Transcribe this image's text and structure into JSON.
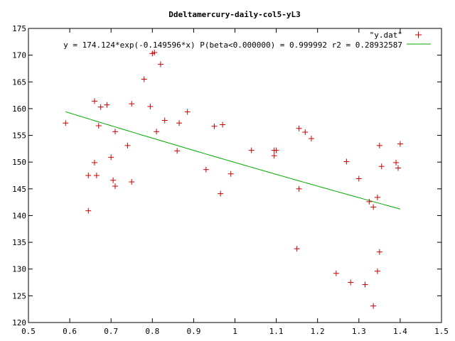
{
  "chart_data": {
    "type": "scatter",
    "title": "Ddeltamercury-daily-col5-yL3",
    "xlabel": "",
    "ylabel": "",
    "xlim": [
      0.5,
      1.5
    ],
    "ylim": [
      120,
      175
    ],
    "x_ticks": [
      "0.5",
      "0.6",
      "0.7",
      "0.8",
      "0.9",
      "1",
      "1.1",
      "1.2",
      "1.3",
      "1.4",
      "1.5"
    ],
    "y_ticks": [
      "120",
      "125",
      "130",
      "135",
      "140",
      "145",
      "150",
      "155",
      "160",
      "165",
      "170",
      "175"
    ],
    "grid": false,
    "legend_position": "top-right",
    "series": [
      {
        "name": "\"y.dat\"",
        "kind": "points",
        "marker": "+",
        "color": "#cc0000",
        "points": [
          [
            0.59,
            157.3
          ],
          [
            0.645,
            140.9
          ],
          [
            0.645,
            147.5
          ],
          [
            0.66,
            149.9
          ],
          [
            0.66,
            161.4
          ],
          [
            0.665,
            147.5
          ],
          [
            0.67,
            156.8
          ],
          [
            0.675,
            160.3
          ],
          [
            0.69,
            160.7
          ],
          [
            0.7,
            150.9
          ],
          [
            0.705,
            146.6
          ],
          [
            0.71,
            155.7
          ],
          [
            0.71,
            145.5
          ],
          [
            0.74,
            153.1
          ],
          [
            0.75,
            160.9
          ],
          [
            0.75,
            146.3
          ],
          [
            0.78,
            165.5
          ],
          [
            0.795,
            160.4
          ],
          [
            0.8,
            170.3
          ],
          [
            0.805,
            170.5
          ],
          [
            0.81,
            155.7
          ],
          [
            0.82,
            168.3
          ],
          [
            0.83,
            157.8
          ],
          [
            0.86,
            152.1
          ],
          [
            0.865,
            157.3
          ],
          [
            0.885,
            159.4
          ],
          [
            0.93,
            148.6
          ],
          [
            0.95,
            156.7
          ],
          [
            0.965,
            144.1
          ],
          [
            0.97,
            157.0
          ],
          [
            0.99,
            147.8
          ],
          [
            1.04,
            152.2
          ],
          [
            1.095,
            151.2
          ],
          [
            1.095,
            152.2
          ],
          [
            1.1,
            152.2
          ],
          [
            1.15,
            133.8
          ],
          [
            1.155,
            156.3
          ],
          [
            1.155,
            145.0
          ],
          [
            1.17,
            155.6
          ],
          [
            1.185,
            154.4
          ],
          [
            1.245,
            129.2
          ],
          [
            1.27,
            150.1
          ],
          [
            1.28,
            127.5
          ],
          [
            1.3,
            146.9
          ],
          [
            1.315,
            127.1
          ],
          [
            1.325,
            142.6
          ],
          [
            1.335,
            123.1
          ],
          [
            1.335,
            141.6
          ],
          [
            1.345,
            143.4
          ],
          [
            1.345,
            129.6
          ],
          [
            1.35,
            133.2
          ],
          [
            1.35,
            153.1
          ],
          [
            1.355,
            149.2
          ],
          [
            1.39,
            149.9
          ],
          [
            1.395,
            148.9
          ],
          [
            1.4,
            153.4
          ]
        ]
      },
      {
        "name": "y = 174.124*exp(-0.149596*x) P(beta<0.000000) = 0.999992 r2 = 0.28932587",
        "kind": "line",
        "color": "#00aa00",
        "formula": {
          "a": 174.124,
          "b": -0.149596,
          "x_from": 0.59,
          "x_to": 1.4
        }
      }
    ]
  }
}
